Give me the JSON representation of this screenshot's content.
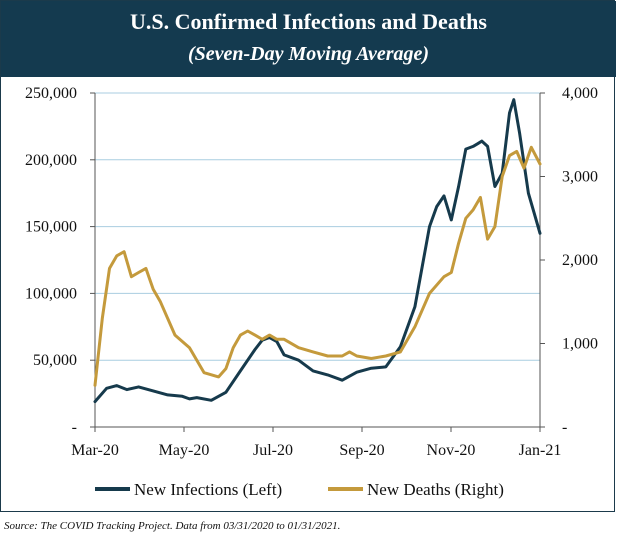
{
  "header": {
    "title": "U.S. Confirmed Infections and Deaths",
    "subtitle": "(Seven-Day Moving Average)"
  },
  "source": "Source: The COVID Tracking Project. Data from 03/31/2020 to 01/31/2021.",
  "colors": {
    "header_bg": "#143a4f",
    "infections": "#163a4c",
    "deaths": "#c49a3c",
    "grid": "#a9cde0"
  },
  "chart_data": {
    "type": "line",
    "title": "U.S. Confirmed Infections and Deaths",
    "subtitle": "(Seven-Day Moving Average)",
    "x_tick_labels": [
      "Mar-20",
      "May-20",
      "Jul-20",
      "Sep-20",
      "Nov-20",
      "Jan-21"
    ],
    "y_left": {
      "lim": [
        0,
        250000
      ],
      "tick_labels": [
        "-",
        "50,000",
        "100,000",
        "150,000",
        "200,000",
        "250,000"
      ]
    },
    "y_right": {
      "lim": [
        0,
        4000
      ],
      "tick_labels": [
        "-",
        "1,000",
        "2,000",
        "3,000",
        "4,000"
      ]
    },
    "grid": true,
    "legend": "bottom",
    "x_unit": "days since Mar 1, 2020 (Mar-20=0, Jan-21=306)",
    "series": [
      {
        "name": "New Infections (Left)",
        "axis": "left",
        "x": [
          0,
          8,
          15,
          22,
          30,
          40,
          50,
          60,
          65,
          70,
          80,
          90,
          100,
          110,
          115,
          120,
          125,
          130,
          140,
          150,
          160,
          170,
          180,
          190,
          200,
          210,
          220,
          225,
          230,
          235,
          240,
          245,
          250,
          255,
          260,
          263,
          266,
          270,
          275,
          280,
          285,
          288,
          292,
          298,
          302,
          306
        ],
        "y": [
          19000,
          29000,
          31000,
          28000,
          30000,
          27000,
          24000,
          23000,
          21000,
          22000,
          20000,
          26000,
          42000,
          58000,
          65000,
          67000,
          64000,
          54000,
          50000,
          42000,
          39000,
          35000,
          41000,
          44000,
          45000,
          60000,
          90000,
          120000,
          150000,
          165000,
          173000,
          155000,
          180000,
          208000,
          210000,
          212000,
          214000,
          210000,
          180000,
          190000,
          235000,
          245000,
          220000,
          175000,
          160000,
          145000
        ]
      },
      {
        "name": "New Deaths (Right)",
        "axis": "right",
        "x": [
          0,
          5,
          10,
          15,
          20,
          25,
          30,
          35,
          40,
          45,
          55,
          65,
          75,
          85,
          90,
          95,
          100,
          105,
          110,
          115,
          120,
          125,
          130,
          140,
          150,
          160,
          170,
          175,
          180,
          190,
          200,
          210,
          220,
          230,
          240,
          245,
          250,
          255,
          260,
          265,
          270,
          275,
          280,
          285,
          290,
          295,
          300,
          306
        ],
        "y": [
          500,
          1300,
          1900,
          2050,
          2100,
          1800,
          1850,
          1900,
          1650,
          1500,
          1100,
          950,
          650,
          600,
          700,
          950,
          1100,
          1150,
          1100,
          1050,
          1100,
          1050,
          1050,
          950,
          900,
          850,
          850,
          900,
          850,
          820,
          850,
          900,
          1200,
          1600,
          1800,
          1850,
          2200,
          2500,
          2600,
          2750,
          2250,
          2400,
          3000,
          3250,
          3300,
          3100,
          3350,
          3150
        ]
      }
    ]
  }
}
